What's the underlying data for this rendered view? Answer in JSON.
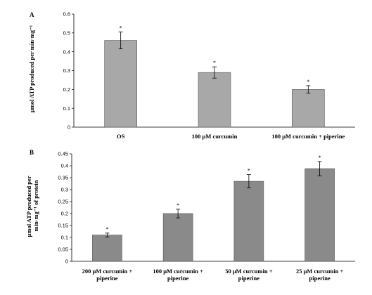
{
  "chart_data": [
    {
      "type": "bar",
      "panel_label": "A",
      "ylabel": "μmol ATP produced per min·mg⁻¹",
      "categories": [
        "OS",
        "100 μM curcumin",
        "100 μM curcumin + piperine"
      ],
      "category_lines": [
        [
          "OS"
        ],
        [
          "100 μM curcumin"
        ],
        [
          "100 μM curcumin + piperine"
        ]
      ],
      "values": [
        0.46,
        0.29,
        0.2
      ],
      "errors": [
        0.045,
        0.03,
        0.02
      ],
      "annotations": [
        "*",
        "*",
        "*"
      ],
      "yticks": [
        "0",
        "0.1",
        "0.2",
        "0.3",
        "0.4",
        "0.5",
        "0.6"
      ],
      "ylim": [
        0,
        0.6
      ],
      "bar_color": "#a8a8a8",
      "grid": false
    },
    {
      "type": "bar",
      "panel_label": "B",
      "ylabel_lines": [
        "μmol ATP produced per",
        "min·mg⁻¹ of protein"
      ],
      "categories": [
        "200 μM curcumin + piperine",
        "100 μM curcumin + piperine",
        "50 μM curcumin + piperine",
        "25 μM curcumin + piperine"
      ],
      "category_lines": [
        [
          "200 μM curcumin +",
          "piperine"
        ],
        [
          "100 μM curcumin +",
          "piperine"
        ],
        [
          "50 μM curcumin +",
          "piperine"
        ],
        [
          "25 μM curcumin +",
          "piperine"
        ]
      ],
      "values": [
        0.11,
        0.2,
        0.335,
        0.388
      ],
      "errors": [
        0.008,
        0.018,
        0.028,
        0.03
      ],
      "annotations": [
        "*",
        "*",
        "*",
        "*"
      ],
      "yticks": [
        "0",
        "0.05",
        "0.1",
        "0.15",
        "0.2",
        "0.25",
        "0.3",
        "0.35",
        "0.4",
        "0.45"
      ],
      "ylim": [
        0,
        0.45
      ],
      "bar_color": "#8a8a8a",
      "grid": false
    }
  ]
}
